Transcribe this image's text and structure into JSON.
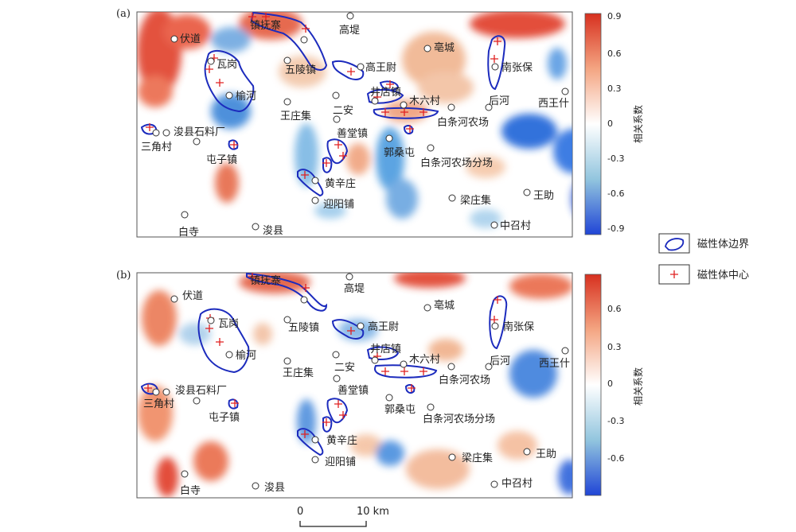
{
  "panels": [
    {
      "letter": "(a)",
      "colorbar": {
        "ticks": [
          "0.9",
          "0.6",
          "0.3",
          "0",
          "-0.3",
          "-0.6",
          "-0.9"
        ],
        "title": "相关系数"
      }
    },
    {
      "letter": "(b)",
      "colorbar": {
        "ticks": [
          "0.6",
          "0.3",
          "0",
          "-0.3",
          "-0.6"
        ],
        "title": "相关系数"
      }
    }
  ],
  "places": [
    {
      "name": "伏道"
    },
    {
      "name": "镇抚寨"
    },
    {
      "name": "高堤"
    },
    {
      "name": "亳城"
    },
    {
      "name": "瓦岗"
    },
    {
      "name": "五陵镇"
    },
    {
      "name": "高王尉"
    },
    {
      "name": "南张保"
    },
    {
      "name": "榆河"
    },
    {
      "name": "井店镇"
    },
    {
      "name": "后河"
    },
    {
      "name": "西王什"
    },
    {
      "name": "木六村"
    },
    {
      "name": "二安"
    },
    {
      "name": "王庄集"
    },
    {
      "name": "白条河农场"
    },
    {
      "name": "浚县石料厂"
    },
    {
      "name": "三角村"
    },
    {
      "name": "善堂镇"
    },
    {
      "name": "郭桑屯"
    },
    {
      "name": "屯子镇"
    },
    {
      "name": "白条河农场分场"
    },
    {
      "name": "黄辛庄"
    },
    {
      "name": "梁庄集"
    },
    {
      "name": "王助"
    },
    {
      "name": "迎阳铺"
    },
    {
      "name": "白寺"
    },
    {
      "name": "浚县"
    },
    {
      "name": "中召村"
    }
  ],
  "legend": {
    "boundary": "磁性体边界",
    "center": "磁性体中心"
  },
  "scalebar": {
    "start": "0",
    "end": "10 km"
  },
  "colors": {
    "boundary": "#1c2bbd",
    "center": "#e02020",
    "pos": "#d4301f",
    "neg": "#1f5fd4"
  }
}
